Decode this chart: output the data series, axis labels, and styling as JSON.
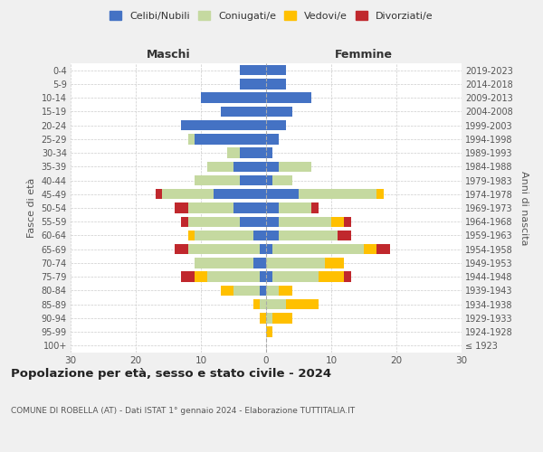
{
  "age_groups": [
    "100+",
    "95-99",
    "90-94",
    "85-89",
    "80-84",
    "75-79",
    "70-74",
    "65-69",
    "60-64",
    "55-59",
    "50-54",
    "45-49",
    "40-44",
    "35-39",
    "30-34",
    "25-29",
    "20-24",
    "15-19",
    "10-14",
    "5-9",
    "0-4"
  ],
  "birth_years": [
    "≤ 1923",
    "1924-1928",
    "1929-1933",
    "1934-1938",
    "1939-1943",
    "1944-1948",
    "1949-1953",
    "1954-1958",
    "1959-1963",
    "1964-1968",
    "1969-1973",
    "1974-1978",
    "1979-1983",
    "1984-1988",
    "1989-1993",
    "1994-1998",
    "1999-2003",
    "2004-2008",
    "2009-2013",
    "2014-2018",
    "2019-2023"
  ],
  "maschi": {
    "celibi": [
      0,
      0,
      0,
      0,
      1,
      1,
      2,
      1,
      2,
      4,
      5,
      8,
      4,
      5,
      4,
      11,
      13,
      7,
      10,
      4,
      4
    ],
    "coniugati": [
      0,
      0,
      0,
      1,
      4,
      8,
      9,
      11,
      9,
      8,
      7,
      8,
      7,
      4,
      2,
      1,
      0,
      0,
      0,
      0,
      0
    ],
    "vedovi": [
      0,
      0,
      1,
      1,
      2,
      2,
      0,
      0,
      1,
      0,
      0,
      0,
      0,
      0,
      0,
      0,
      0,
      0,
      0,
      0,
      0
    ],
    "divorziati": [
      0,
      0,
      0,
      0,
      0,
      2,
      0,
      2,
      0,
      1,
      2,
      1,
      0,
      0,
      0,
      0,
      0,
      0,
      0,
      0,
      0
    ]
  },
  "femmine": {
    "nubili": [
      0,
      0,
      0,
      0,
      0,
      1,
      0,
      1,
      2,
      2,
      2,
      5,
      1,
      2,
      1,
      2,
      3,
      4,
      7,
      3,
      3
    ],
    "coniugate": [
      0,
      0,
      1,
      3,
      2,
      7,
      9,
      14,
      9,
      8,
      5,
      12,
      3,
      5,
      0,
      0,
      0,
      0,
      0,
      0,
      0
    ],
    "vedove": [
      0,
      1,
      3,
      5,
      2,
      4,
      3,
      2,
      0,
      2,
      0,
      1,
      0,
      0,
      0,
      0,
      0,
      0,
      0,
      0,
      0
    ],
    "divorziate": [
      0,
      0,
      0,
      0,
      0,
      1,
      0,
      2,
      2,
      1,
      1,
      0,
      0,
      0,
      0,
      0,
      0,
      0,
      0,
      0,
      0
    ]
  },
  "color_celibi": "#4472c4",
  "color_coniugati": "#c5d9a0",
  "color_vedovi": "#ffc000",
  "color_divorziati": "#c0282d",
  "title": "Popolazione per età, sesso e stato civile - 2024",
  "subtitle": "COMUNE DI ROBELLA (AT) - Dati ISTAT 1° gennaio 2024 - Elaborazione TUTTITALIA.IT",
  "xlabel_left": "Maschi",
  "xlabel_right": "Femmine",
  "ylabel_left": "Fasce di età",
  "ylabel_right": "Anni di nascita",
  "xlim": 30,
  "bg_color": "#f0f0f0",
  "plot_bg": "#ffffff"
}
